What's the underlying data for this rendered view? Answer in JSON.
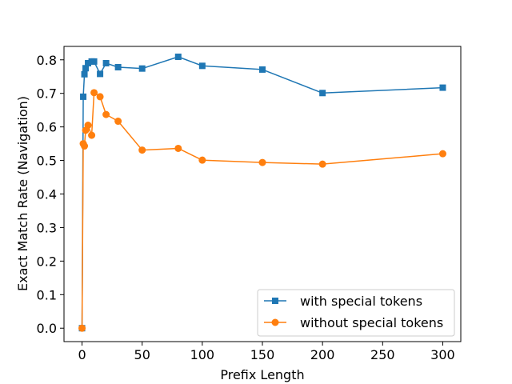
{
  "chart_data": {
    "type": "line",
    "title": "",
    "xlabel": "Prefix Length",
    "ylabel": "Exact Match Rate (Navigation)",
    "xlim": [
      -15,
      315
    ],
    "ylim": [
      -0.04,
      0.84
    ],
    "xticks": [
      0,
      50,
      100,
      150,
      200,
      250,
      300
    ],
    "yticks": [
      0.0,
      0.1,
      0.2,
      0.3,
      0.4,
      0.5,
      0.6,
      0.7,
      0.8
    ],
    "grid": false,
    "legend_position": "lower-right",
    "series": [
      {
        "name": "with special tokens",
        "color": "#1f77b4",
        "marker": "square",
        "x": [
          0,
          1,
          2,
          3,
          5,
          8,
          10,
          15,
          20,
          30,
          50,
          80,
          100,
          150,
          200,
          300
        ],
        "y": [
          0.0,
          0.69,
          0.757,
          0.775,
          0.79,
          0.795,
          0.795,
          0.758,
          0.79,
          0.778,
          0.774,
          0.809,
          0.782,
          0.771,
          0.701,
          0.717
        ]
      },
      {
        "name": "without special tokens",
        "color": "#ff7f0e",
        "marker": "circle",
        "x": [
          0,
          1,
          2,
          3,
          5,
          8,
          10,
          15,
          20,
          30,
          50,
          80,
          100,
          150,
          200,
          300
        ],
        "y": [
          0.0,
          0.55,
          0.543,
          0.59,
          0.605,
          0.575,
          0.702,
          0.69,
          0.637,
          0.617,
          0.531,
          0.536,
          0.501,
          0.494,
          0.489,
          0.52
        ]
      }
    ]
  }
}
